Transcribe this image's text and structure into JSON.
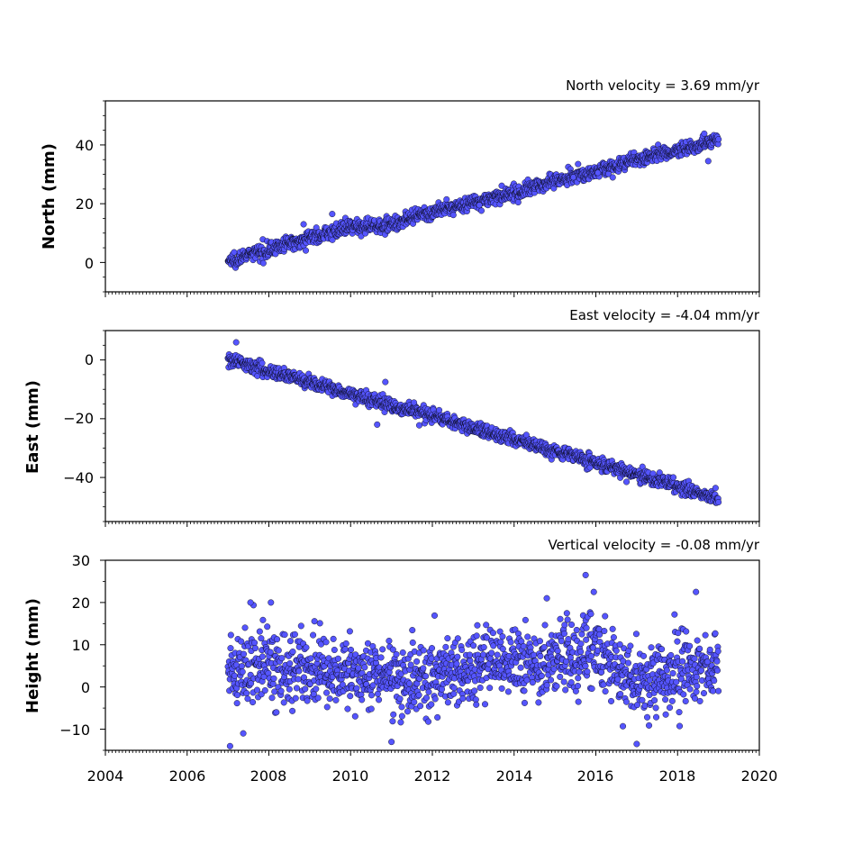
{
  "chart_data": [
    {
      "type": "scatter",
      "title": "North velocity = 3.69 mm/yr",
      "xlabel": "",
      "ylabel": "North (mm)",
      "xlim": [
        2004,
        2020
      ],
      "ylim": [
        -10,
        55
      ],
      "yticks": [
        "0",
        "20",
        "40"
      ],
      "xticks": [],
      "marker_color": "#5555ff",
      "marker_edge": "#000000",
      "noise_mm": 1.2,
      "start_value": 0.5,
      "velocity_mm_per_yr": 3.69,
      "points": [
        {
          "x": 2007.0,
          "y": 0.5
        },
        {
          "x": 2008.0,
          "y": 4.5
        },
        {
          "x": 2009.0,
          "y": 8.5
        },
        {
          "x": 2010.0,
          "y": 12.0
        },
        {
          "x": 2011.0,
          "y": 13.0
        },
        {
          "x": 2012.0,
          "y": 17.0
        },
        {
          "x": 2013.0,
          "y": 20.5
        },
        {
          "x": 2014.0,
          "y": 23.5
        },
        {
          "x": 2015.0,
          "y": 28.0
        },
        {
          "x": 2016.0,
          "y": 31.0
        },
        {
          "x": 2017.0,
          "y": 35.0
        },
        {
          "x": 2018.0,
          "y": 38.0
        },
        {
          "x": 2019.0,
          "y": 42.0
        }
      ],
      "outliers": [
        {
          "x": 2008.85,
          "y": 13.0
        },
        {
          "x": 2009.55,
          "y": 16.5
        },
        {
          "x": 2015.45,
          "y": 29.0
        },
        {
          "x": 2016.05,
          "y": 30.5
        },
        {
          "x": 2018.75,
          "y": 34.5
        },
        {
          "x": 2013.15,
          "y": 19.5
        },
        {
          "x": 2014.1,
          "y": 20.5
        }
      ]
    },
    {
      "type": "scatter",
      "title": "East velocity = -4.04 mm/yr",
      "xlabel": "",
      "ylabel": "East (mm)",
      "xlim": [
        2004,
        2020
      ],
      "ylim": [
        -55,
        10
      ],
      "yticks": [
        "0",
        "−20",
        "−40"
      ],
      "xticks": [],
      "marker_color": "#5555ff",
      "marker_edge": "#000000",
      "noise_mm": 1.1,
      "start_value": 0.5,
      "velocity_mm_per_yr": -4.04,
      "points": [
        {
          "x": 2007.0,
          "y": 0.5
        },
        {
          "x": 2008.0,
          "y": -3.5
        },
        {
          "x": 2009.0,
          "y": -7.5
        },
        {
          "x": 2010.0,
          "y": -11.5
        },
        {
          "x": 2011.0,
          "y": -15.5
        },
        {
          "x": 2012.0,
          "y": -19.0
        },
        {
          "x": 2013.0,
          "y": -23.0
        },
        {
          "x": 2014.0,
          "y": -27.0
        },
        {
          "x": 2015.0,
          "y": -31.0
        },
        {
          "x": 2016.0,
          "y": -35.0
        },
        {
          "x": 2017.0,
          "y": -39.0
        },
        {
          "x": 2018.0,
          "y": -43.0
        },
        {
          "x": 2019.0,
          "y": -47.0
        }
      ],
      "outliers": [
        {
          "x": 2007.2,
          "y": 6.0
        },
        {
          "x": 2010.65,
          "y": -22.0
        },
        {
          "x": 2010.85,
          "y": -7.5
        },
        {
          "x": 2011.55,
          "y": -14.5
        },
        {
          "x": 2016.75,
          "y": -41.5
        },
        {
          "x": 2014.3,
          "y": -25.5
        }
      ]
    },
    {
      "type": "scatter",
      "title": "Vertical velocity = -0.08 mm/yr",
      "xlabel": "",
      "ylabel": "Height (mm)",
      "xlim": [
        2004,
        2020
      ],
      "ylim": [
        -15,
        30
      ],
      "yticks": [
        "30",
        "20",
        "10",
        "0",
        "−10"
      ],
      "xticks": [
        "2004",
        "2006",
        "2008",
        "2010",
        "2012",
        "2014",
        "2016",
        "2018",
        "2020"
      ],
      "marker_color": "#5555ff",
      "marker_edge": "#000000",
      "noise_mm": 4.2,
      "start_value": 3.0,
      "velocity_mm_per_yr": -0.08,
      "points": [
        {
          "x": 2007.0,
          "y": 3.0
        },
        {
          "x": 2008.0,
          "y": 6.0
        },
        {
          "x": 2009.0,
          "y": 2.5
        },
        {
          "x": 2010.0,
          "y": 4.0
        },
        {
          "x": 2011.0,
          "y": 1.0
        },
        {
          "x": 2012.0,
          "y": 3.5
        },
        {
          "x": 2013.0,
          "y": 4.5
        },
        {
          "x": 2014.0,
          "y": 6.5
        },
        {
          "x": 2015.0,
          "y": 5.5
        },
        {
          "x": 2016.0,
          "y": 9.0
        },
        {
          "x": 2017.0,
          "y": 1.0
        },
        {
          "x": 2018.0,
          "y": 3.0
        },
        {
          "x": 2019.0,
          "y": 5.0
        }
      ],
      "outliers": [
        {
          "x": 2015.75,
          "y": 26.5
        },
        {
          "x": 2018.45,
          "y": 22.5
        },
        {
          "x": 2007.05,
          "y": -14.0
        },
        {
          "x": 2017.0,
          "y": -13.5
        },
        {
          "x": 2011.0,
          "y": -13.0
        },
        {
          "x": 2007.55,
          "y": 20.0
        },
        {
          "x": 2008.05,
          "y": 20.0
        },
        {
          "x": 2015.95,
          "y": 22.5
        },
        {
          "x": 2014.8,
          "y": 21.0
        }
      ]
    }
  ]
}
